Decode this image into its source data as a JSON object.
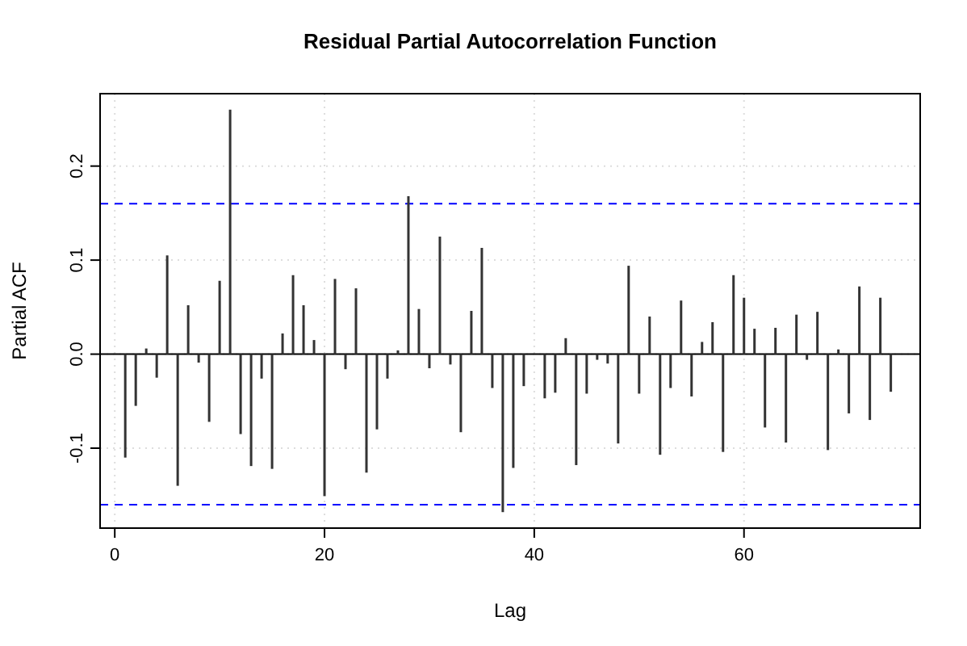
{
  "chart_data": {
    "type": "bar",
    "title": "Residual Partial Autocorrelation Function",
    "xlabel": "Lag",
    "ylabel": "Partial ACF",
    "x": [
      1,
      2,
      3,
      4,
      5,
      6,
      7,
      8,
      9,
      10,
      11,
      12,
      13,
      14,
      15,
      16,
      17,
      18,
      19,
      20,
      21,
      22,
      23,
      24,
      25,
      26,
      27,
      28,
      29,
      30,
      31,
      32,
      33,
      34,
      35,
      36,
      37,
      38,
      39,
      40,
      41,
      42,
      43,
      44,
      45,
      46,
      47,
      48,
      49,
      50,
      51,
      52,
      53,
      54,
      55,
      56,
      57,
      58,
      59,
      60,
      61,
      62,
      63,
      64,
      65,
      66,
      67,
      68,
      69,
      70,
      71,
      72,
      73,
      74
    ],
    "values": [
      -0.11,
      -0.055,
      0.006,
      -0.025,
      0.105,
      -0.14,
      0.052,
      -0.009,
      -0.072,
      0.078,
      0.26,
      -0.085,
      -0.119,
      -0.026,
      -0.122,
      0.022,
      0.084,
      0.052,
      0.015,
      -0.151,
      0.08,
      -0.016,
      0.07,
      -0.126,
      -0.08,
      -0.026,
      0.004,
      0.168,
      0.048,
      -0.015,
      0.125,
      -0.011,
      -0.083,
      0.046,
      0.113,
      -0.036,
      -0.168,
      -0.121,
      -0.034,
      0.0,
      -0.047,
      -0.041,
      0.017,
      -0.118,
      -0.042,
      -0.006,
      -0.01,
      -0.095,
      0.094,
      -0.042,
      0.04,
      -0.107,
      -0.036,
      0.057,
      -0.045,
      0.013,
      0.034,
      -0.104,
      0.084,
      0.06,
      0.027,
      -0.078,
      0.028,
      -0.094,
      0.042,
      -0.006,
      0.045,
      -0.102,
      0.005,
      -0.063,
      0.072,
      -0.07,
      0.06,
      -0.04
    ],
    "color": "#333333",
    "xlim": [
      -1.4,
      76.8
    ],
    "xticks": [
      0,
      20,
      40,
      60
    ],
    "ylim": [
      -0.185,
      0.277
    ],
    "yticks": [
      {
        "value": -0.1,
        "label": "-0.1"
      },
      {
        "value": 0,
        "label": "0.0"
      },
      {
        "value": 0.1,
        "label": "0.1"
      },
      {
        "value": 0.2,
        "label": "0.2"
      }
    ],
    "grid": true,
    "ref_lines": [
      {
        "axis": "y",
        "value": 0,
        "color": "#000000",
        "line_style": "solid"
      },
      {
        "axis": "y",
        "value": 0.16,
        "color": "#0000ff",
        "line_style": "dashed"
      },
      {
        "axis": "y",
        "value": -0.16,
        "color": "#0000ff",
        "line_style": "dashed"
      }
    ]
  }
}
